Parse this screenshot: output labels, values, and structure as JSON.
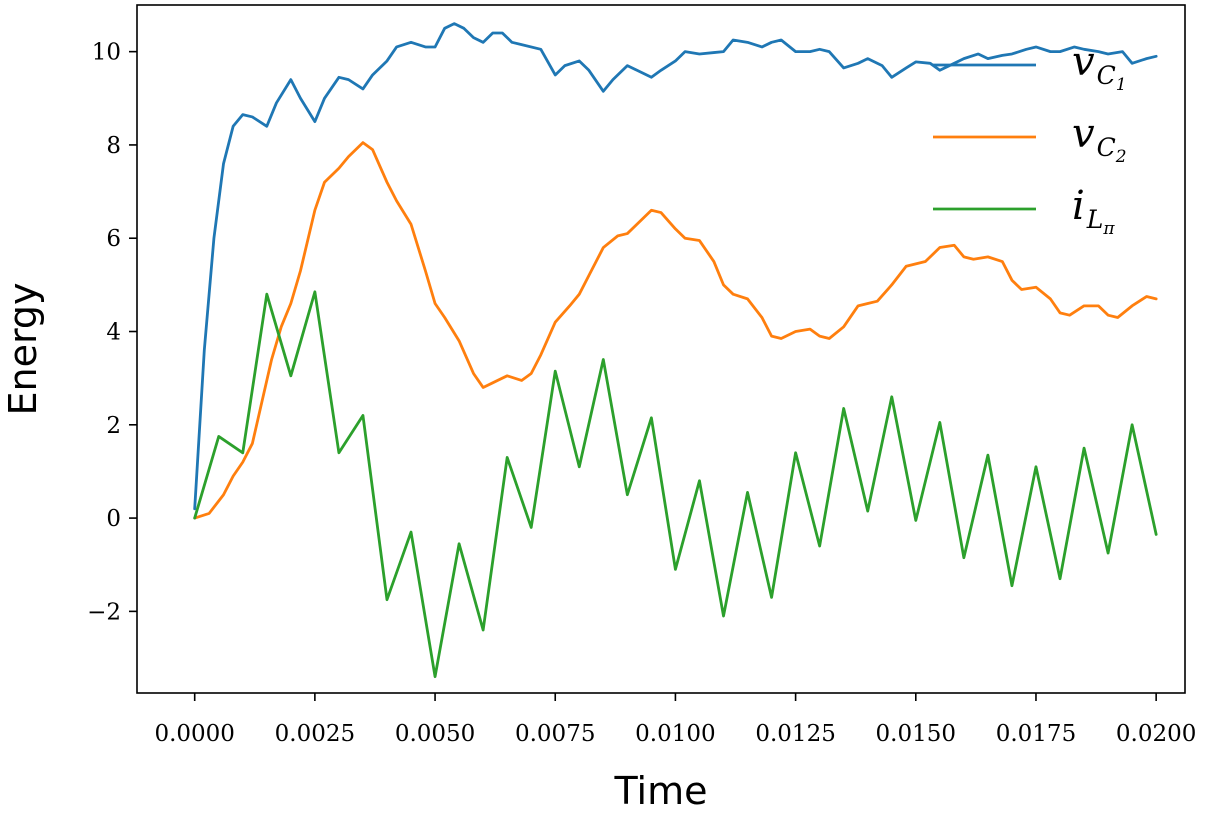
{
  "chart_data": {
    "type": "line",
    "xlabel": "Time",
    "ylabel": "Energy",
    "xlim": [
      -0.0012,
      0.0206
    ],
    "ylim": [
      -3.75,
      11.0
    ],
    "xticks": [
      0.0,
      0.0025,
      0.005,
      0.0075,
      0.01,
      0.0125,
      0.015,
      0.0175,
      0.02
    ],
    "xtick_labels": [
      "0.0000",
      "0.0025",
      "0.0050",
      "0.0075",
      "0.0100",
      "0.0125",
      "0.0150",
      "0.0175",
      "0.0200"
    ],
    "yticks": [
      -2,
      0,
      2,
      4,
      6,
      8,
      10
    ],
    "ytick_labels": [
      "−2",
      "0",
      "2",
      "4",
      "6",
      "8",
      "10"
    ],
    "grid": false,
    "legend_position": "top-right",
    "series": [
      {
        "name": "v_{C_1}",
        "legend_base": "v",
        "legend_sub": "C",
        "legend_subsub": "1",
        "color": "#1f77b4",
        "x": [
          0,
          0.0002,
          0.0004,
          0.0006,
          0.0008,
          0.001,
          0.0012,
          0.0015,
          0.0017,
          0.002,
          0.0022,
          0.0025,
          0.0027,
          0.003,
          0.0032,
          0.0035,
          0.0037,
          0.004,
          0.0042,
          0.0045,
          0.0048,
          0.005,
          0.0052,
          0.0054,
          0.0056,
          0.0058,
          0.006,
          0.0062,
          0.0064,
          0.0066,
          0.0068,
          0.0072,
          0.0075,
          0.0077,
          0.008,
          0.0082,
          0.0085,
          0.0087,
          0.009,
          0.0092,
          0.0095,
          0.0097,
          0.01,
          0.0102,
          0.0105,
          0.0108,
          0.011,
          0.0112,
          0.0115,
          0.0118,
          0.012,
          0.0122,
          0.0125,
          0.0128,
          0.013,
          0.0132,
          0.0135,
          0.0138,
          0.014,
          0.0143,
          0.0145,
          0.0148,
          0.015,
          0.0153,
          0.0155,
          0.0158,
          0.016,
          0.0163,
          0.0165,
          0.0168,
          0.017,
          0.0173,
          0.0175,
          0.0178,
          0.018,
          0.0183,
          0.0185,
          0.0188,
          0.019,
          0.0193,
          0.0195,
          0.0198,
          0.02
        ],
        "y": [
          0.2,
          3.6,
          6.0,
          7.6,
          8.4,
          8.65,
          8.6,
          8.4,
          8.9,
          9.4,
          9.0,
          8.5,
          9.0,
          9.45,
          9.4,
          9.2,
          9.5,
          9.8,
          10.1,
          10.2,
          10.1,
          10.1,
          10.5,
          10.6,
          10.5,
          10.3,
          10.2,
          10.4,
          10.4,
          10.2,
          10.15,
          10.05,
          9.5,
          9.7,
          9.8,
          9.6,
          9.15,
          9.4,
          9.7,
          9.6,
          9.45,
          9.6,
          9.8,
          10.0,
          9.95,
          9.98,
          10.0,
          10.25,
          10.2,
          10.1,
          10.2,
          10.25,
          10.0,
          10.0,
          10.05,
          10.0,
          9.65,
          9.75,
          9.85,
          9.7,
          9.45,
          9.65,
          9.78,
          9.75,
          9.6,
          9.75,
          9.85,
          9.95,
          9.85,
          9.92,
          9.95,
          10.05,
          10.1,
          10.0,
          10.0,
          10.1,
          10.05,
          10.0,
          9.95,
          10.0,
          9.75,
          9.85,
          9.9
        ]
      },
      {
        "name": "v_{C_2}",
        "legend_base": "v",
        "legend_sub": "C",
        "legend_subsub": "2",
        "color": "#ff7f0e",
        "x": [
          0,
          0.0003,
          0.0006,
          0.0008,
          0.001,
          0.0012,
          0.0014,
          0.0016,
          0.0018,
          0.002,
          0.0022,
          0.0025,
          0.0027,
          0.003,
          0.0032,
          0.0035,
          0.0037,
          0.004,
          0.0042,
          0.0045,
          0.0048,
          0.005,
          0.0052,
          0.0055,
          0.0058,
          0.006,
          0.0062,
          0.0065,
          0.0068,
          0.007,
          0.0072,
          0.0075,
          0.0078,
          0.008,
          0.0082,
          0.0085,
          0.0088,
          0.009,
          0.0092,
          0.0095,
          0.0097,
          0.01,
          0.0102,
          0.0105,
          0.0108,
          0.011,
          0.0112,
          0.0115,
          0.0118,
          0.012,
          0.0122,
          0.0125,
          0.0128,
          0.013,
          0.0132,
          0.0135,
          0.0138,
          0.014,
          0.0142,
          0.0145,
          0.0148,
          0.015,
          0.0152,
          0.0155,
          0.0158,
          0.016,
          0.0162,
          0.0165,
          0.0168,
          0.017,
          0.0172,
          0.0175,
          0.0178,
          0.018,
          0.0182,
          0.0185,
          0.0188,
          0.019,
          0.0192,
          0.0195,
          0.0198,
          0.02
        ],
        "y": [
          0.0,
          0.1,
          0.5,
          0.9,
          1.2,
          1.6,
          2.5,
          3.4,
          4.1,
          4.6,
          5.3,
          6.6,
          7.2,
          7.5,
          7.75,
          8.05,
          7.9,
          7.2,
          6.8,
          6.3,
          5.3,
          4.6,
          4.3,
          3.8,
          3.1,
          2.8,
          2.9,
          3.05,
          2.95,
          3.1,
          3.5,
          4.2,
          4.55,
          4.8,
          5.2,
          5.8,
          6.05,
          6.1,
          6.3,
          6.6,
          6.55,
          6.2,
          6.0,
          5.95,
          5.5,
          5.0,
          4.8,
          4.7,
          4.3,
          3.9,
          3.85,
          4.0,
          4.05,
          3.9,
          3.85,
          4.1,
          4.55,
          4.6,
          4.65,
          5.0,
          5.4,
          5.45,
          5.5,
          5.8,
          5.85,
          5.6,
          5.55,
          5.6,
          5.5,
          5.1,
          4.9,
          4.95,
          4.7,
          4.4,
          4.35,
          4.55,
          4.55,
          4.35,
          4.3,
          4.55,
          4.75,
          4.7
        ]
      },
      {
        "name": "i_{L_π}",
        "legend_base": "i",
        "legend_sub": "L",
        "legend_subsub": "π",
        "color": "#2ca02c",
        "x": [
          0,
          0.0005,
          0.001,
          0.0015,
          0.002,
          0.0025,
          0.003,
          0.0035,
          0.004,
          0.0045,
          0.005,
          0.0055,
          0.006,
          0.0065,
          0.007,
          0.0075,
          0.008,
          0.0085,
          0.009,
          0.0095,
          0.01,
          0.0105,
          0.011,
          0.0115,
          0.012,
          0.0125,
          0.013,
          0.0135,
          0.014,
          0.0145,
          0.015,
          0.0155,
          0.016,
          0.0165,
          0.017,
          0.0175,
          0.018,
          0.0185,
          0.019,
          0.0195,
          0.02
        ],
        "y": [
          0.0,
          1.75,
          1.4,
          4.8,
          3.05,
          4.85,
          1.4,
          2.2,
          -1.75,
          -0.3,
          -3.4,
          -0.55,
          -2.4,
          1.3,
          -0.2,
          3.15,
          1.1,
          3.4,
          0.5,
          2.15,
          -1.1,
          0.8,
          -2.1,
          0.55,
          -1.7,
          1.4,
          -0.6,
          2.35,
          0.15,
          2.6,
          -0.05,
          2.05,
          -0.85,
          1.35,
          -1.45,
          1.1,
          -1.3,
          1.5,
          -0.75,
          2.0,
          -0.35
        ]
      }
    ]
  }
}
